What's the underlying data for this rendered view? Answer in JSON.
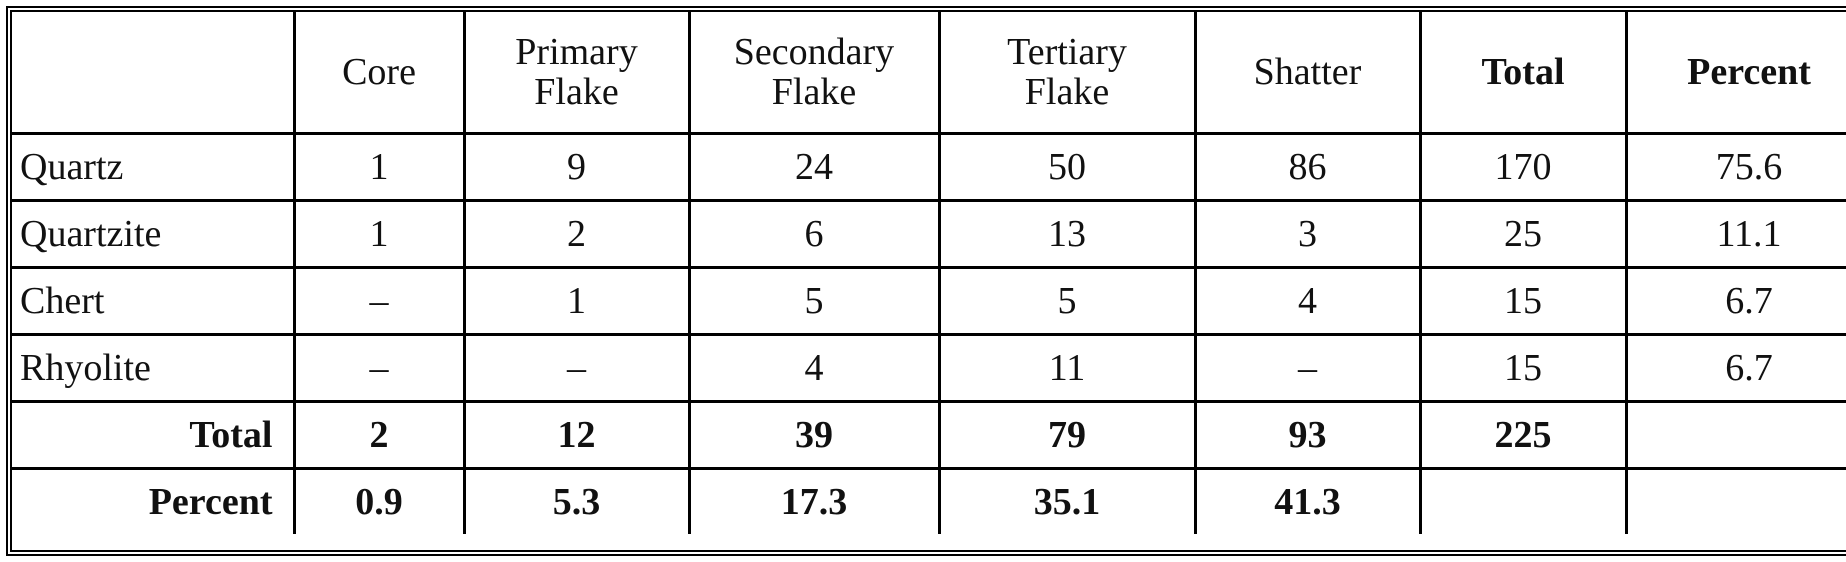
{
  "table": {
    "header": [
      null,
      "Core",
      "Primary Flake",
      "Secondary Flake",
      "Tertiary Flake",
      "Shatter",
      "Total",
      "Percent"
    ],
    "rows": [
      [
        "Quartz",
        "1",
        "9",
        "24",
        "50",
        "86",
        "170",
        "75.6"
      ],
      [
        "Quartzite",
        "1",
        "2",
        "6",
        "13",
        "3",
        "25",
        "11.1"
      ],
      [
        "Chert",
        "–",
        "1",
        "5",
        "5",
        "4",
        "15",
        "6.7"
      ],
      [
        "Rhyolite",
        "–",
        "–",
        "4",
        "11",
        "–",
        "15",
        "6.7"
      ],
      [
        "Total",
        "2",
        "12",
        "39",
        "79",
        "93",
        "225",
        null
      ],
      [
        "Percent",
        "0.9",
        "5.3",
        "17.3",
        "35.1",
        "41.3",
        null,
        null
      ]
    ]
  }
}
